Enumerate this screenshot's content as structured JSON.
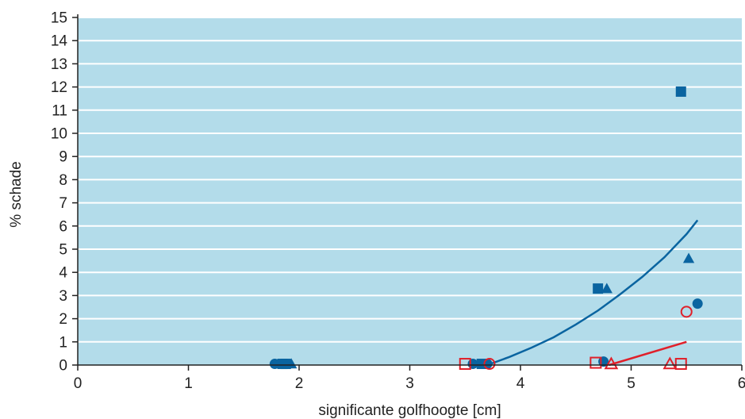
{
  "chart_data": {
    "type": "scatter",
    "xlabel": "significante golfhoogte [cm]",
    "ylabel": "% schade",
    "xlim": [
      0,
      6
    ],
    "ylim": [
      0,
      15
    ],
    "xticks": [
      "0",
      "1",
      "2",
      "3",
      "4",
      "5",
      "6"
    ],
    "yticks": [
      "0",
      "1",
      "2",
      "3",
      "4",
      "5",
      "6",
      "7",
      "8",
      "9",
      "10",
      "11",
      "12",
      "13",
      "14",
      "15"
    ],
    "grid": "horizontal",
    "background_color": "#b3dcea",
    "colors": {
      "blue": "#0a64a0",
      "red": "#e0202a"
    },
    "series": [
      {
        "marker": "filled-circle",
        "color": "#0a64a0",
        "points": [
          [
            1.78,
            0.05
          ],
          [
            3.57,
            0.05
          ],
          [
            3.7,
            0.05
          ],
          [
            4.75,
            0.15
          ],
          [
            5.6,
            2.65
          ]
        ]
      },
      {
        "marker": "filled-square",
        "color": "#0a64a0",
        "points": [
          [
            1.85,
            0.05
          ],
          [
            1.88,
            0.05
          ],
          [
            3.65,
            0.05
          ],
          [
            4.7,
            3.3
          ],
          [
            5.45,
            11.8
          ]
        ]
      },
      {
        "marker": "filled-triangle",
        "color": "#0a64a0",
        "points": [
          [
            1.93,
            0.05
          ],
          [
            4.78,
            3.3
          ],
          [
            5.52,
            4.6
          ]
        ]
      },
      {
        "marker": "open-square",
        "color": "#e0202a",
        "points": [
          [
            3.5,
            0.05
          ],
          [
            4.68,
            0.1
          ],
          [
            5.45,
            0.05
          ]
        ]
      },
      {
        "marker": "open-circle",
        "color": "#e0202a",
        "points": [
          [
            3.72,
            0.05
          ],
          [
            5.5,
            2.3
          ]
        ]
      },
      {
        "marker": "open-triangle",
        "color": "#e0202a",
        "points": [
          [
            4.82,
            0.05
          ],
          [
            5.35,
            0.05
          ]
        ]
      }
    ],
    "fit_lines": [
      {
        "color": "#0a64a0",
        "points": [
          [
            3.7,
            0.0
          ],
          [
            3.9,
            0.35
          ],
          [
            4.1,
            0.75
          ],
          [
            4.3,
            1.2
          ],
          [
            4.5,
            1.75
          ],
          [
            4.7,
            2.35
          ],
          [
            4.9,
            3.05
          ],
          [
            5.1,
            3.8
          ],
          [
            5.3,
            4.65
          ],
          [
            5.5,
            5.65
          ],
          [
            5.6,
            6.25
          ]
        ]
      },
      {
        "color": "#e0202a",
        "points": [
          [
            4.8,
            0.0
          ],
          [
            5.5,
            1.0
          ]
        ]
      }
    ]
  }
}
